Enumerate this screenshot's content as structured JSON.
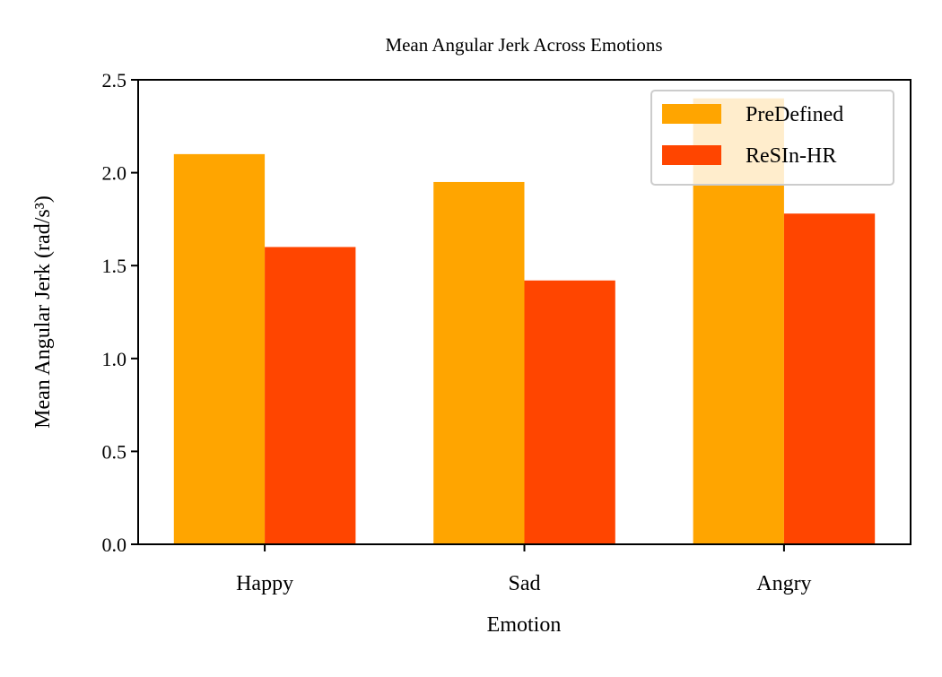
{
  "chart_data": {
    "type": "bar",
    "title": "Mean Angular Jerk Across Emotions",
    "xlabel": "Emotion",
    "ylabel": "Mean Angular Jerk (rad/s³)",
    "categories": [
      "Happy",
      "Sad",
      "Angry"
    ],
    "series": [
      {
        "name": "PreDefined",
        "color": "#FFA500",
        "values": [
          2.1,
          1.95,
          2.4
        ]
      },
      {
        "name": "ReSIn-HR",
        "color": "#FF4500",
        "values": [
          1.6,
          1.42,
          1.78
        ]
      }
    ],
    "ylim": [
      0,
      2.5
    ],
    "yticks": [
      "0.0",
      "0.5",
      "1.0",
      "1.5",
      "2.0",
      "2.5"
    ],
    "grid": false,
    "legend_position": "top-right"
  }
}
